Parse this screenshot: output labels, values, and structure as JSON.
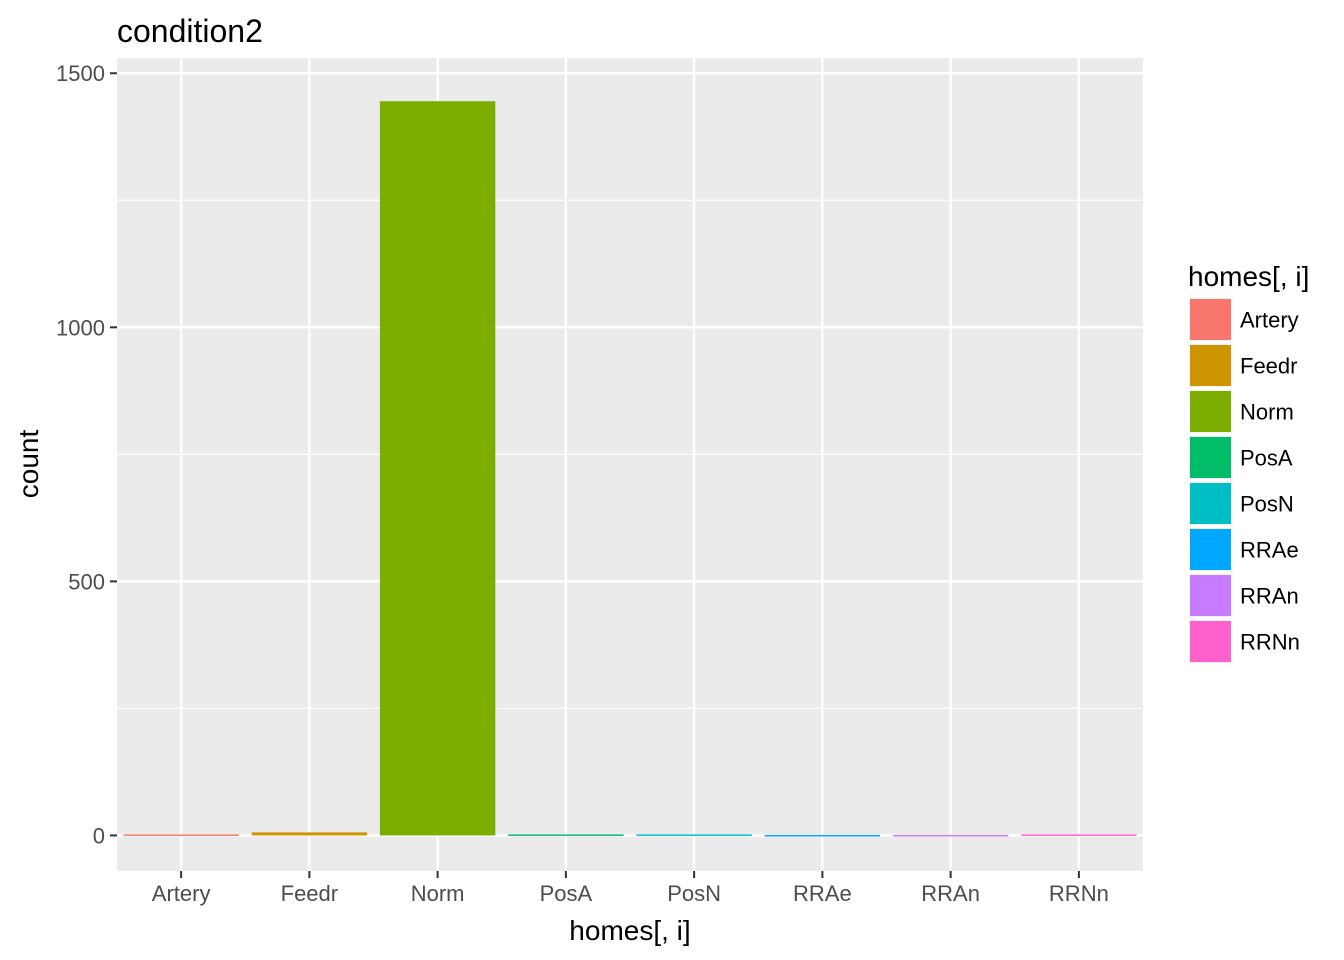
{
  "chart_data": {
    "type": "bar",
    "title": "condition2",
    "xlabel": "homes[, i]",
    "ylabel": "count",
    "categories": [
      "Artery",
      "Feedr",
      "Norm",
      "PosA",
      "PosN",
      "RRAe",
      "RRAn",
      "RRNn"
    ],
    "values": [
      2,
      6,
      1445,
      2,
      2,
      1,
      1,
      2
    ],
    "colors": [
      "#F8766D",
      "#CD9600",
      "#7CAE00",
      "#00BE67",
      "#00BFC4",
      "#00A9FF",
      "#C77CFF",
      "#FF61CC"
    ],
    "ylim": [
      -70,
      1530
    ],
    "yticks": [
      0,
      500,
      1000,
      1500
    ],
    "grid": true,
    "legend": {
      "title": "homes[, i]",
      "position": "right",
      "entries": [
        "Artery",
        "Feedr",
        "Norm",
        "PosA",
        "PosN",
        "RRAe",
        "RRAn",
        "RRNn"
      ]
    },
    "panel_color": "#EBEBEB",
    "grid_color": "#FFFFFF"
  }
}
